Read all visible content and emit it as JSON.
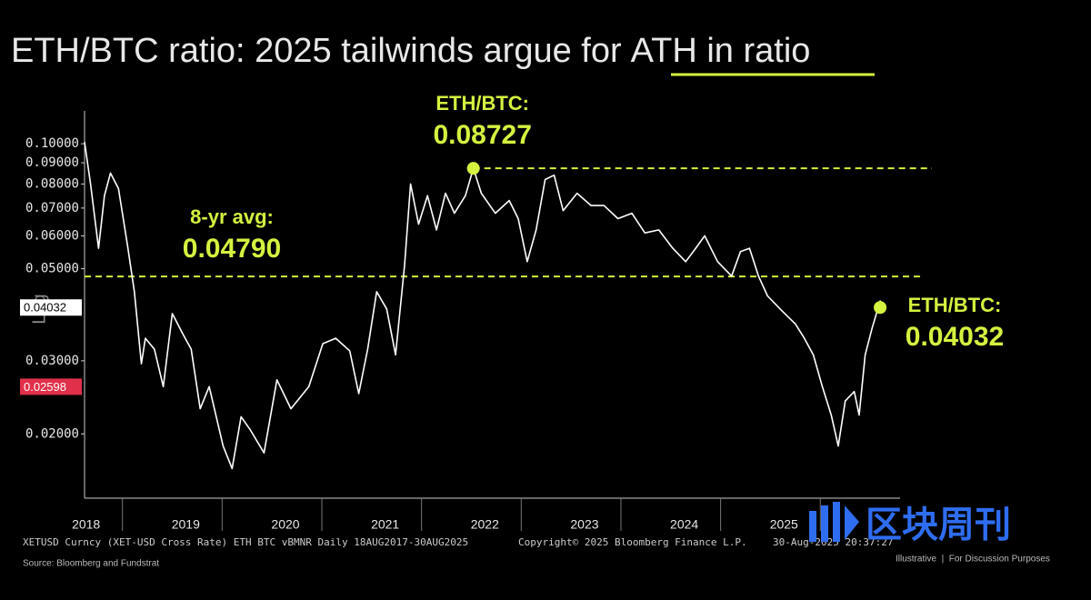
{
  "chart_data": {
    "type": "line",
    "title": "ETH/BTC ratio: 2025 tailwinds argue for",
    "title_highlight": "ATH in ratio",
    "y_label": "Log",
    "log_scale": true,
    "color": "#ffffff",
    "accent_color": "#d4f23f",
    "x": [
      2017.62,
      2017.68,
      2017.76,
      2017.82,
      2017.88,
      2017.96,
      2018.05,
      2018.12,
      2018.19,
      2018.23,
      2018.32,
      2018.41,
      2018.5,
      2018.6,
      2018.69,
      2018.78,
      2018.87,
      2019.01,
      2019.1,
      2019.19,
      2019.28,
      2019.42,
      2019.55,
      2019.69,
      2019.87,
      2020.01,
      2020.14,
      2020.28,
      2020.37,
      2020.46,
      2020.55,
      2020.65,
      2020.74,
      2020.83,
      2020.89,
      2020.97,
      2021.06,
      2021.15,
      2021.24,
      2021.33,
      2021.44,
      2021.52,
      2021.6,
      2021.74,
      2021.88,
      2021.97,
      2022.06,
      2022.15,
      2022.24,
      2022.33,
      2022.42,
      2022.56,
      2022.7,
      2022.83,
      2022.97,
      2023.11,
      2023.24,
      2023.38,
      2023.52,
      2023.65,
      2023.75,
      2023.84,
      2023.97,
      2024.11,
      2024.2,
      2024.29,
      2024.38,
      2024.47,
      2024.61,
      2024.75,
      2024.84,
      2024.93,
      2025.02,
      2025.11,
      2025.18,
      2025.25,
      2025.34,
      2025.39,
      2025.45,
      2025.52,
      2025.6,
      2025.66
    ],
    "values": [
      0.101,
      0.08,
      0.056,
      0.075,
      0.085,
      0.078,
      0.057,
      0.044,
      0.0295,
      0.034,
      0.032,
      0.026,
      0.039,
      0.035,
      0.032,
      0.023,
      0.026,
      0.0187,
      0.0165,
      0.022,
      0.0205,
      0.018,
      0.027,
      0.023,
      0.026,
      0.033,
      0.034,
      0.0317,
      0.025,
      0.032,
      0.044,
      0.04,
      0.031,
      0.051,
      0.08,
      0.064,
      0.075,
      0.062,
      0.076,
      0.068,
      0.075,
      0.0873,
      0.076,
      0.068,
      0.073,
      0.066,
      0.052,
      0.062,
      0.082,
      0.084,
      0.069,
      0.076,
      0.071,
      0.071,
      0.066,
      0.068,
      0.061,
      0.062,
      0.056,
      0.052,
      0.056,
      0.06,
      0.052,
      0.048,
      0.055,
      0.056,
      0.048,
      0.043,
      0.0397,
      0.0368,
      0.034,
      0.031,
      0.026,
      0.0222,
      0.0187,
      0.024,
      0.0253,
      0.0222,
      0.031,
      0.036,
      0.0418,
      0.04032
    ],
    "xlim": [
      2017.62,
      2025.8
    ],
    "xticks": [
      2018,
      2019,
      2020,
      2021,
      2022,
      2023,
      2024,
      2025
    ],
    "ylim": [
      0.014,
      0.12
    ],
    "yticks": [
      {
        "value": 0.1,
        "label": "0.10000"
      },
      {
        "value": 0.09,
        "label": "0.09000"
      },
      {
        "value": 0.08,
        "label": "0.08000"
      },
      {
        "value": 0.07,
        "label": "0.07000"
      },
      {
        "value": 0.06,
        "label": "0.06000"
      },
      {
        "value": 0.05,
        "label": "0.05000"
      },
      {
        "value": 0.03,
        "label": "0.03000"
      },
      {
        "value": 0.02,
        "label": "0.02000"
      }
    ],
    "price_tags": [
      {
        "value": 0.04032,
        "color": "#ffffff",
        "text_color": "#000000"
      },
      {
        "value": 0.02598,
        "color": "#e0304a",
        "text_color": "#ffffff"
      }
    ],
    "average": {
      "name": "8-yr avg:",
      "value": 0.0479,
      "label": "0.04790"
    },
    "ath": {
      "name": "ETH/BTC:",
      "value": 0.08727,
      "x": 2021.52
    },
    "last": {
      "name": "ETH/BTC:",
      "value": 0.04032,
      "x": 2025.6
    },
    "footer": {
      "ticker": "XETUSD Curncy (XET-USD Cross Rate) ETH BTC vBMNR  Daily 18AUG2017-30AUG2025",
      "copyright": "Copyright© 2025 Bloomberg Finance L.P.",
      "timestamp": "30-Aug-2025 20:37:27",
      "source": "Source: Bloomberg and Fundstrat",
      "disclaimer": "Illustrative  |  For Discussion Purposes"
    },
    "watermark": "区块周刊"
  }
}
